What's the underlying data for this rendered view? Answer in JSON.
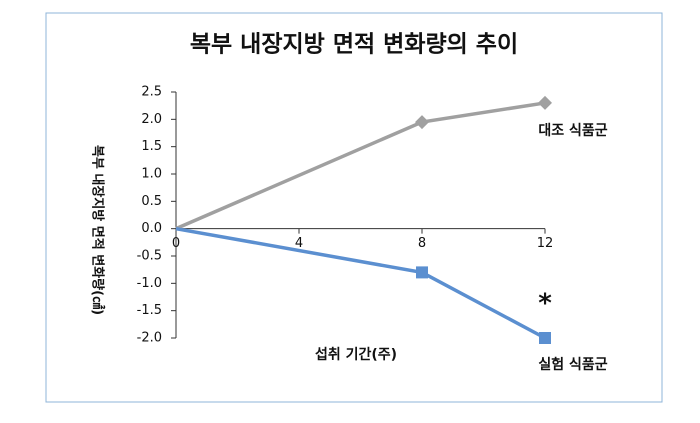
{
  "chart_data": {
    "type": "line",
    "title": "복부 내장지방 면적 변화량의 추이",
    "y_label": "복부 내장지방 면적 변화량(㎠)",
    "x_label": "섭취 기간(주)",
    "x": [
      0,
      8,
      12
    ],
    "xlim": [
      0,
      12
    ],
    "xticks": [
      0,
      4,
      8,
      12
    ],
    "ylim": [
      -2.0,
      2.5
    ],
    "yticks": [
      {
        "value": -2.0,
        "label": "-2.0"
      },
      -1.5,
      {
        "value": -1.0,
        "label": "-1.0"
      },
      -0.5,
      {
        "value": 0,
        "label": "0.0"
      },
      0.5,
      {
        "value": 1.0,
        "label": "1.0"
      },
      1.5,
      {
        "value": 2.0,
        "label": "2.0"
      },
      2.5
    ],
    "series": [
      {
        "name": "대조 식품군",
        "color": "#a0a0a0",
        "marker": "diamond",
        "values": [
          0,
          1.95,
          2.3
        ]
      },
      {
        "name": "실험 식품군",
        "color": "#5b8fd0",
        "marker": "square",
        "values": [
          0,
          -0.8,
          -2.0
        ]
      }
    ],
    "annotation": "*"
  }
}
